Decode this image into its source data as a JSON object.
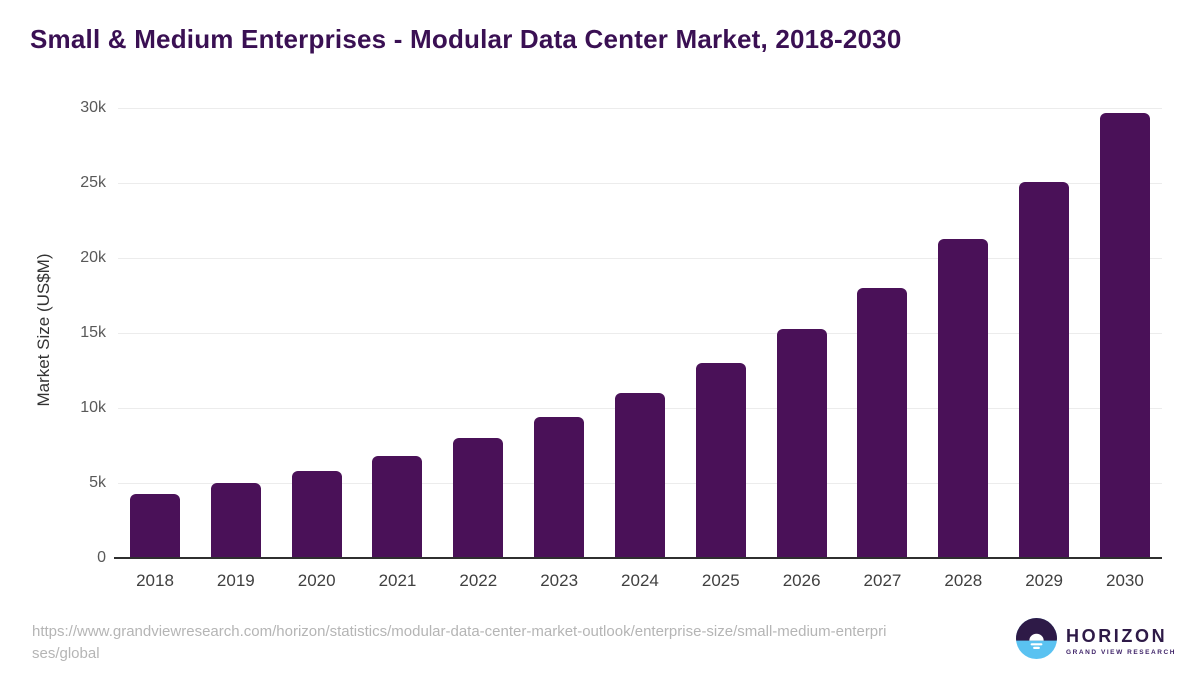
{
  "title": "Small & Medium Enterprises - Modular Data Center Market, 2018-2030",
  "chart_data": {
    "type": "bar",
    "title": "Small & Medium Enterprises - Modular Data Center Market, 2018-2030",
    "categories": [
      "2018",
      "2019",
      "2020",
      "2021",
      "2022",
      "2023",
      "2024",
      "2025",
      "2026",
      "2027",
      "2028",
      "2029",
      "2030"
    ],
    "values": [
      4300,
      5000,
      5800,
      6800,
      8000,
      9400,
      11000,
      13000,
      15300,
      18000,
      21300,
      25100,
      29700
    ],
    "xlabel": "",
    "ylabel": "Market Size (US$M)",
    "ylim": [
      0,
      30000
    ],
    "yticks": [
      {
        "v": 0,
        "label": "0"
      },
      {
        "v": 5000,
        "label": "5k"
      },
      {
        "v": 10000,
        "label": "10k"
      },
      {
        "v": 15000,
        "label": "15k"
      },
      {
        "v": 20000,
        "label": "20k"
      },
      {
        "v": 25000,
        "label": "25k"
      },
      {
        "v": 30000,
        "label": "30k"
      }
    ],
    "grid": true,
    "legend": false,
    "bar_color": "#4a1158"
  },
  "colors": {
    "title_text": "#3a1053",
    "bar": "#4a1158",
    "gridline": "#ececec",
    "axis_line": "#2f2f2f",
    "tick_label": "#595959",
    "url_text": "#b5b5b5",
    "logo_purple": "#2e1a47",
    "logo_blue": "#5ac2f1"
  },
  "footer": {
    "url_line1": "https://www.grandviewresearch.com/horizon/statistics/modular-data-center-market-outlook/enterprise-size/small-medium-enterpri",
    "url_line2": "ses/global",
    "logo": {
      "name": "HORIZON",
      "subname": "GRAND VIEW RESEARCH"
    }
  }
}
